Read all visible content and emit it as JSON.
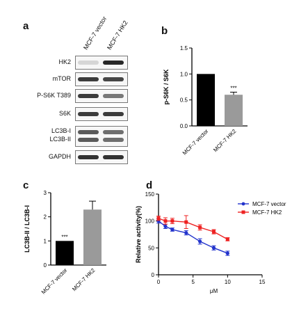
{
  "panels": {
    "a": "a",
    "b": "b",
    "c": "c",
    "d": "d"
  },
  "blot": {
    "columns": [
      "MCF-7 vector",
      "MCF-7 HK2"
    ],
    "rows": [
      {
        "label": "HK2",
        "bands": [
          0.08,
          0.95
        ]
      },
      {
        "label": "mTOR",
        "bands": [
          0.85,
          0.8
        ]
      },
      {
        "label": "P-S6K T389",
        "bands": [
          0.85,
          0.55
        ]
      },
      {
        "label": "S6K",
        "bands": [
          0.85,
          0.85
        ]
      },
      {
        "label": "LC3B-I\nLC3B-II",
        "bands": [
          0.7,
          0.6
        ]
      },
      {
        "label": "GAPDH",
        "bands": [
          0.9,
          0.9
        ]
      }
    ]
  },
  "chart_data": [
    {
      "panel": "b",
      "type": "bar",
      "categories": [
        "MCF-7 vector",
        "MCF-7 HK2"
      ],
      "values": [
        1.0,
        0.6
      ],
      "errors": [
        0,
        0.05
      ],
      "colors": [
        "#000000",
        "#9a9a9a"
      ],
      "ylabel": "p-S6K / S6K",
      "ylim": [
        0,
        1.5
      ],
      "yticks": [
        "0.0",
        "0.5",
        "1.0",
        "1.5"
      ],
      "annotations": [
        {
          "category": "MCF-7 HK2",
          "text": "***"
        }
      ]
    },
    {
      "panel": "c",
      "type": "bar",
      "categories": [
        "MCF-7 vector",
        "MCF-7 HK2"
      ],
      "values": [
        1.0,
        2.3
      ],
      "errors": [
        0,
        0.35
      ],
      "colors": [
        "#000000",
        "#9a9a9a"
      ],
      "ylabel": "LC3B-II / LC3B-I",
      "ylim": [
        0,
        3
      ],
      "yticks": [
        "0",
        "1",
        "2",
        "3"
      ],
      "annotations": [
        {
          "category": "MCF-7 vector",
          "text": "***"
        }
      ]
    },
    {
      "panel": "d",
      "type": "line",
      "x": [
        0,
        0.625,
        1.25,
        2.5,
        5,
        10
      ],
      "xticks": [
        "0",
        "5",
        "10",
        "15"
      ],
      "xlim": [
        0,
        15
      ],
      "xlabel": "μM",
      "ylabel": "Relative activity(%)",
      "ylim": [
        0,
        150
      ],
      "yticks": [
        "0",
        "50",
        "100",
        "150"
      ],
      "series": [
        {
          "name": "MCF-7 vector",
          "color": "#2233cc",
          "x": [
            0,
            1,
            2,
            4,
            6,
            8,
            10
          ],
          "values": [
            100,
            90,
            84,
            78,
            62,
            50,
            40
          ],
          "errors": [
            4,
            4,
            3,
            4,
            5,
            4,
            4
          ]
        },
        {
          "name": "MCF-7 HK2",
          "color": "#ee2222",
          "x": [
            0,
            1,
            2,
            4,
            6,
            8,
            10
          ],
          "values": [
            105,
            100,
            100,
            98,
            88,
            80,
            66
          ],
          "errors": [
            4,
            6,
            5,
            12,
            5,
            4,
            3
          ]
        }
      ],
      "legend_position": "top-right"
    }
  ]
}
